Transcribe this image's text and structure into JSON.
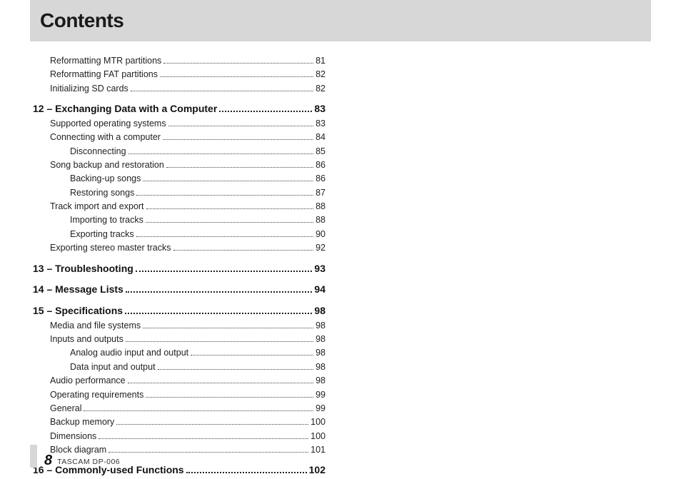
{
  "header": {
    "title": "Contents"
  },
  "toc": [
    {
      "level": "lvl-1",
      "label": "Reformatting MTR partitions",
      "page": "81"
    },
    {
      "level": "lvl-1",
      "label": "Reformatting FAT partitions",
      "page": "82"
    },
    {
      "level": "lvl-1",
      "label": "Initializing SD cards",
      "page": "82"
    },
    {
      "level": "lvl-chapter",
      "label": "12 – Exchanging Data with a Computer",
      "page": "83"
    },
    {
      "level": "lvl-1",
      "label": "Supported operating systems",
      "page": "83"
    },
    {
      "level": "lvl-1",
      "label": "Connecting with a computer",
      "page": "84"
    },
    {
      "level": "lvl-2",
      "label": "Disconnecting",
      "page": "85"
    },
    {
      "level": "lvl-1",
      "label": "Song backup and restoration",
      "page": "86"
    },
    {
      "level": "lvl-2",
      "label": "Backing-up songs",
      "page": "86"
    },
    {
      "level": "lvl-2",
      "label": "Restoring songs",
      "page": "87"
    },
    {
      "level": "lvl-1",
      "label": "Track import and export",
      "page": "88"
    },
    {
      "level": "lvl-2",
      "label": "Importing to tracks",
      "page": "88"
    },
    {
      "level": "lvl-2",
      "label": "Exporting tracks",
      "page": "90"
    },
    {
      "level": "lvl-1",
      "label": "Exporting stereo master tracks",
      "page": "92"
    },
    {
      "level": "lvl-chapter",
      "label": "13 – Troubleshooting",
      "page": "93"
    },
    {
      "level": "lvl-chapter",
      "label": "14 – Message Lists",
      "page": "94"
    },
    {
      "level": "lvl-chapter",
      "label": "15 – Specifications",
      "page": "98"
    },
    {
      "level": "lvl-1",
      "label": "Media and file systems",
      "page": "98"
    },
    {
      "level": "lvl-1",
      "label": "Inputs and outputs",
      "page": "98"
    },
    {
      "level": "lvl-2",
      "label": "Analog audio input and output",
      "page": "98"
    },
    {
      "level": "lvl-2",
      "label": "Data input and output",
      "page": "98"
    },
    {
      "level": "lvl-1",
      "label": "Audio performance",
      "page": "98"
    },
    {
      "level": "lvl-1",
      "label": "Operating requirements",
      "page": "99"
    },
    {
      "level": "lvl-1",
      "label": "General",
      "page": "99"
    },
    {
      "level": "lvl-1",
      "label": "Backup memory",
      "page": "100"
    },
    {
      "level": "lvl-1",
      "label": "Dimensions",
      "page": "100"
    },
    {
      "level": "lvl-1",
      "label": "Block diagram",
      "page": "101"
    },
    {
      "level": "lvl-chapter",
      "label": "16 – Commonly-used Functions",
      "page": "102"
    }
  ],
  "footer": {
    "page_number": "8",
    "product": "TASCAM  DP-006"
  }
}
